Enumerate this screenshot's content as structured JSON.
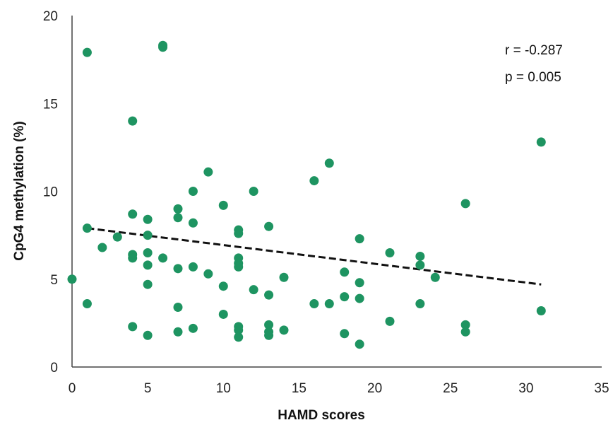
{
  "chart_data": {
    "type": "scatter",
    "title": "",
    "xlabel": "HAMD scores",
    "ylabel": "CpG4 methylation (%)",
    "xlim": [
      0,
      35
    ],
    "ylim": [
      0,
      20
    ],
    "xticks": [
      "0",
      "5",
      "10",
      "15",
      "20",
      "25",
      "30",
      "35"
    ],
    "yticks": [
      "0",
      "5",
      "10",
      "15",
      "20"
    ],
    "grid": false,
    "legend": "none",
    "point_color": "#1e9461",
    "trendline": {
      "style": "dashed",
      "color": "#111111",
      "x": [
        1,
        31
      ],
      "y": [
        7.9,
        4.7
      ]
    },
    "annotations": [
      "r = -0.287",
      "p = 0.005"
    ],
    "points": [
      {
        "x": 0,
        "y": 5.0
      },
      {
        "x": 1,
        "y": 17.9
      },
      {
        "x": 1,
        "y": 7.9
      },
      {
        "x": 1,
        "y": 3.6
      },
      {
        "x": 2,
        "y": 6.8
      },
      {
        "x": 3,
        "y": 7.4
      },
      {
        "x": 4,
        "y": 14.0
      },
      {
        "x": 4,
        "y": 8.7
      },
      {
        "x": 4,
        "y": 6.4
      },
      {
        "x": 4,
        "y": 6.2
      },
      {
        "x": 4,
        "y": 2.3
      },
      {
        "x": 5,
        "y": 8.4
      },
      {
        "x": 5,
        "y": 7.5
      },
      {
        "x": 5,
        "y": 6.5
      },
      {
        "x": 5,
        "y": 5.8
      },
      {
        "x": 5,
        "y": 4.7
      },
      {
        "x": 5,
        "y": 1.8
      },
      {
        "x": 6,
        "y": 18.3
      },
      {
        "x": 6,
        "y": 18.2
      },
      {
        "x": 6,
        "y": 6.2
      },
      {
        "x": 7,
        "y": 9.0
      },
      {
        "x": 7,
        "y": 8.5
      },
      {
        "x": 7,
        "y": 5.6
      },
      {
        "x": 7,
        "y": 3.4
      },
      {
        "x": 7,
        "y": 2.0
      },
      {
        "x": 8,
        "y": 10.0
      },
      {
        "x": 8,
        "y": 8.2
      },
      {
        "x": 8,
        "y": 5.7
      },
      {
        "x": 8,
        "y": 2.2
      },
      {
        "x": 9,
        "y": 11.1
      },
      {
        "x": 9,
        "y": 5.3
      },
      {
        "x": 10,
        "y": 9.2
      },
      {
        "x": 10,
        "y": 4.6
      },
      {
        "x": 10,
        "y": 3.0
      },
      {
        "x": 11,
        "y": 7.8
      },
      {
        "x": 11,
        "y": 7.6
      },
      {
        "x": 11,
        "y": 6.2
      },
      {
        "x": 11,
        "y": 5.9
      },
      {
        "x": 11,
        "y": 5.7
      },
      {
        "x": 11,
        "y": 2.3
      },
      {
        "x": 11,
        "y": 2.1
      },
      {
        "x": 11,
        "y": 1.7
      },
      {
        "x": 12,
        "y": 10.0
      },
      {
        "x": 12,
        "y": 4.4
      },
      {
        "x": 13,
        "y": 8.0
      },
      {
        "x": 13,
        "y": 4.1
      },
      {
        "x": 13,
        "y": 2.4
      },
      {
        "x": 13,
        "y": 2.0
      },
      {
        "x": 13,
        "y": 1.8
      },
      {
        "x": 14,
        "y": 5.1
      },
      {
        "x": 14,
        "y": 2.1
      },
      {
        "x": 16,
        "y": 10.6
      },
      {
        "x": 16,
        "y": 3.6
      },
      {
        "x": 17,
        "y": 11.6
      },
      {
        "x": 17,
        "y": 3.6
      },
      {
        "x": 18,
        "y": 5.4
      },
      {
        "x": 18,
        "y": 4.0
      },
      {
        "x": 18,
        "y": 1.9
      },
      {
        "x": 19,
        "y": 7.3
      },
      {
        "x": 19,
        "y": 4.8
      },
      {
        "x": 19,
        "y": 3.9
      },
      {
        "x": 19,
        "y": 1.3
      },
      {
        "x": 21,
        "y": 6.5
      },
      {
        "x": 21,
        "y": 2.6
      },
      {
        "x": 23,
        "y": 6.3
      },
      {
        "x": 23,
        "y": 5.8
      },
      {
        "x": 23,
        "y": 3.6
      },
      {
        "x": 24,
        "y": 5.1
      },
      {
        "x": 26,
        "y": 9.3
      },
      {
        "x": 26,
        "y": 2.4
      },
      {
        "x": 26,
        "y": 2.0
      },
      {
        "x": 31,
        "y": 12.8
      },
      {
        "x": 31,
        "y": 3.2
      }
    ]
  }
}
